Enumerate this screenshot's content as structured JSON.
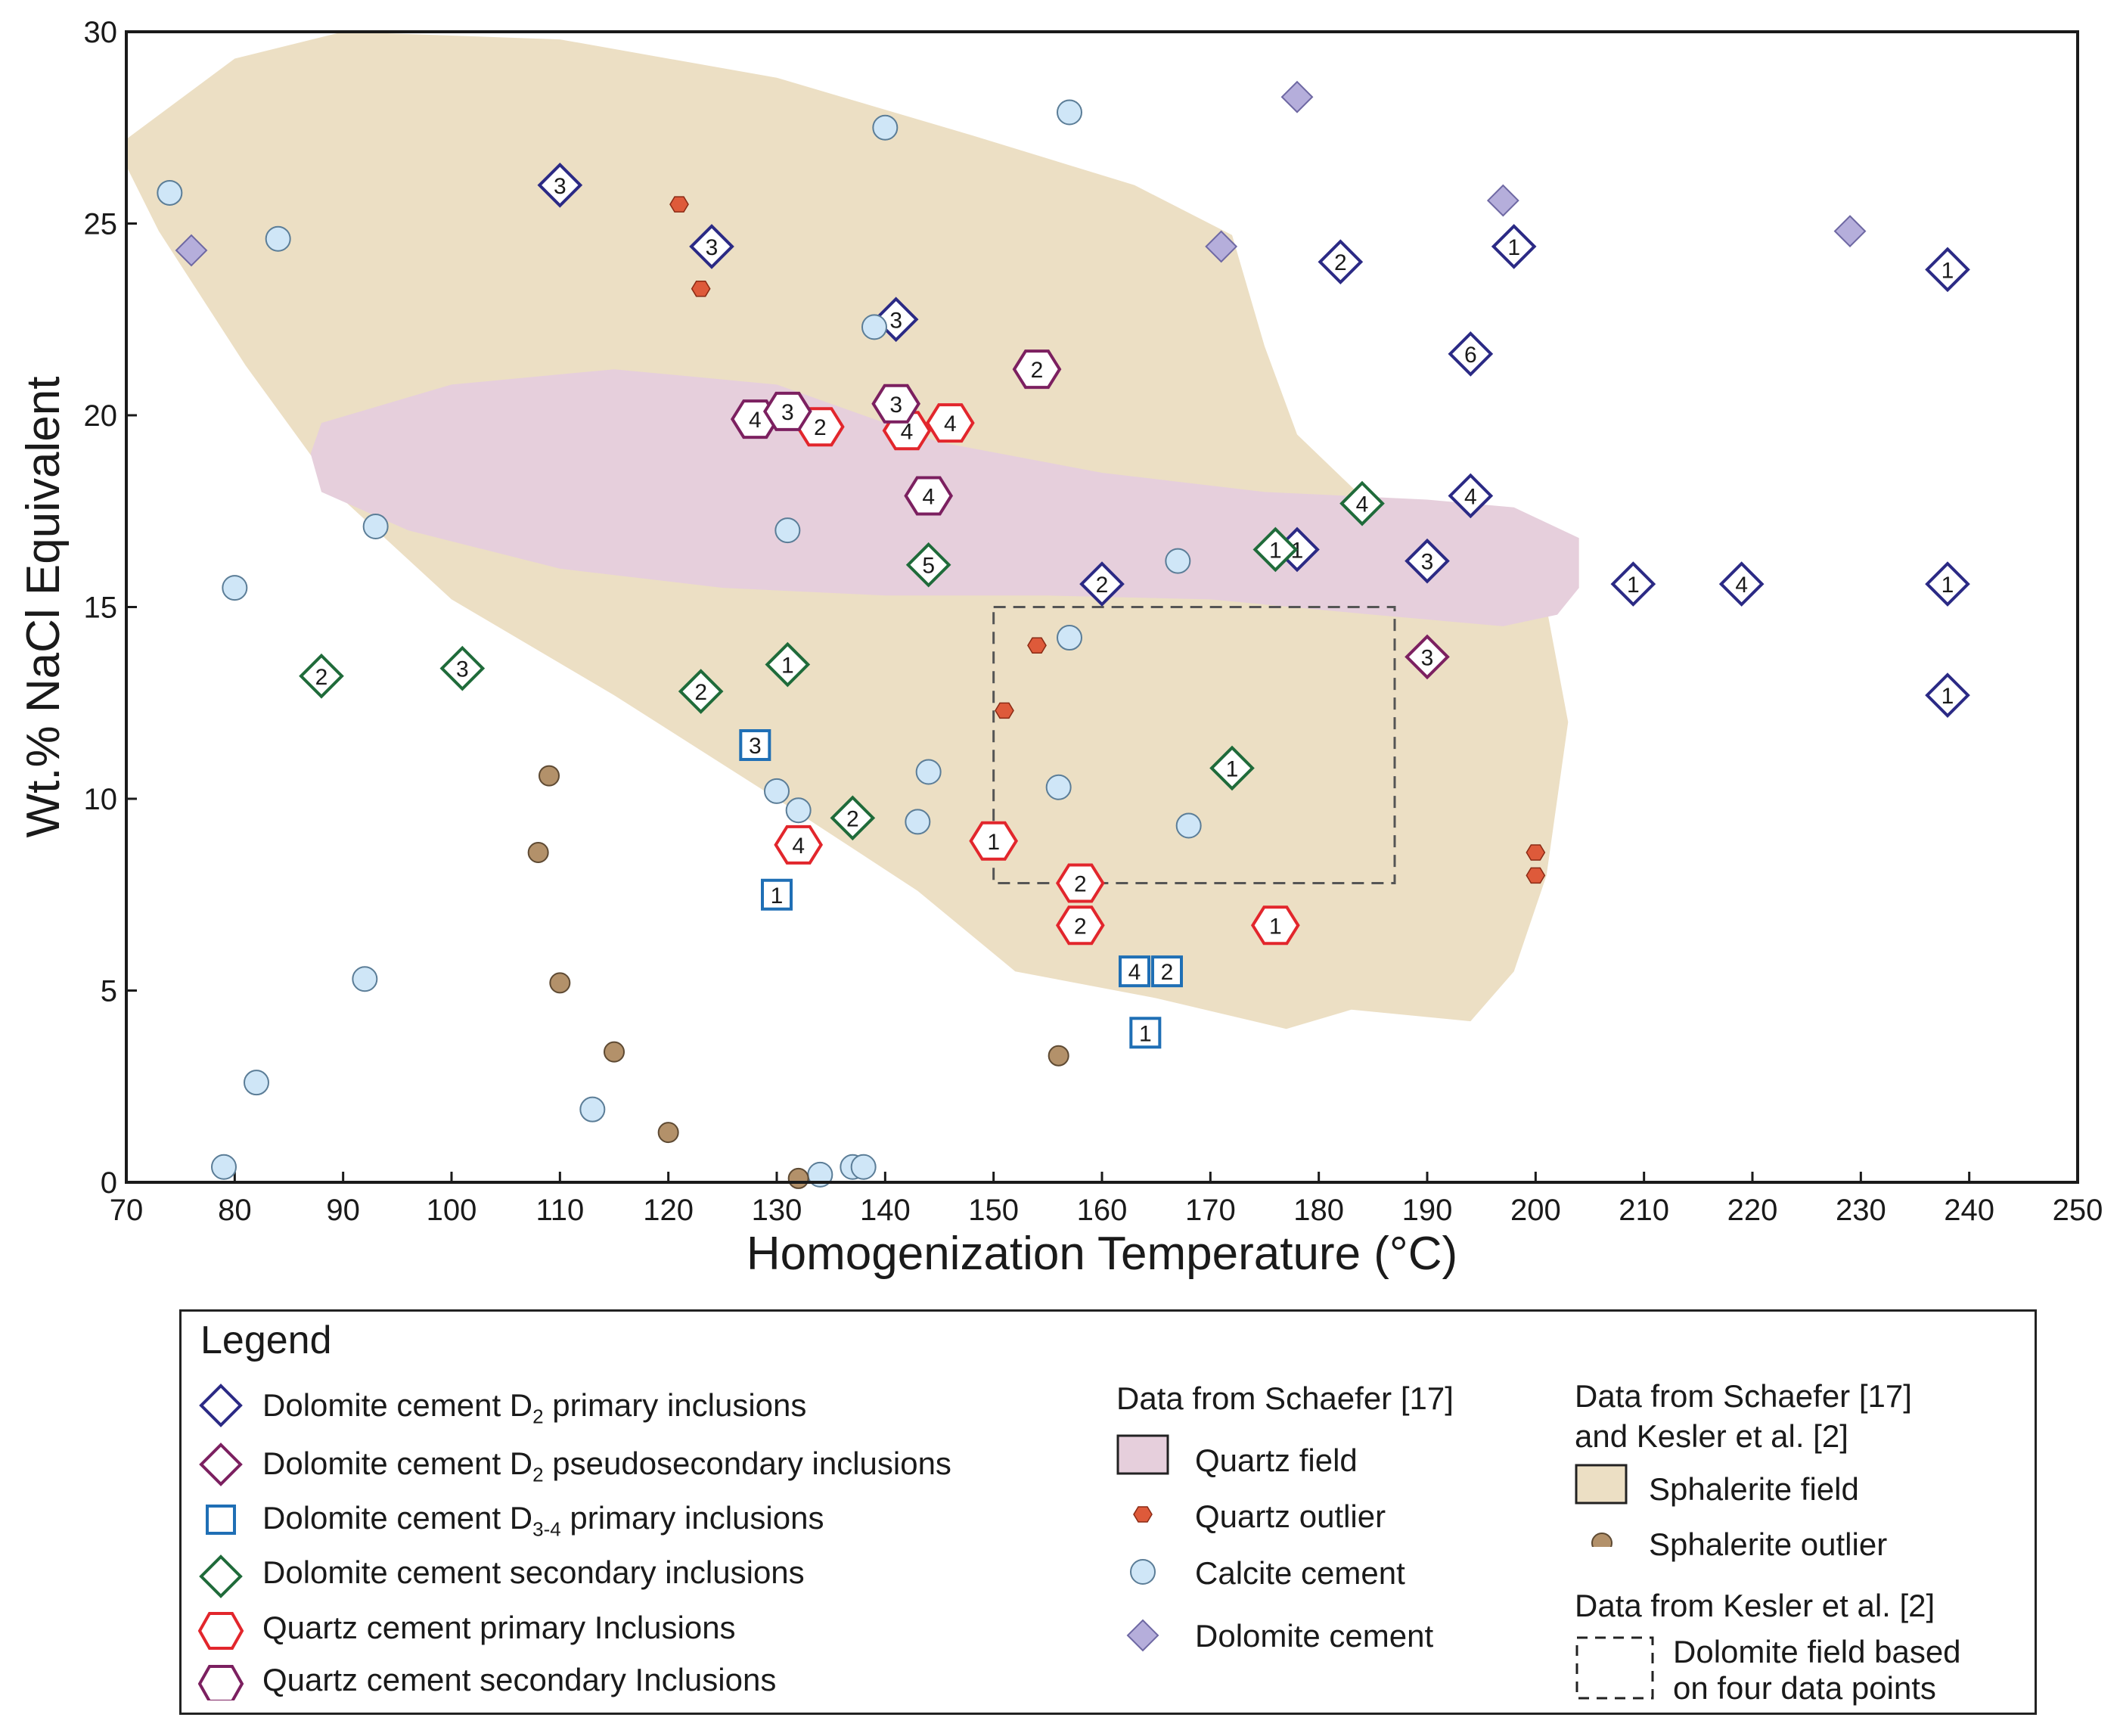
{
  "colors": {
    "d2_primary": "#2b2a85",
    "d2_pseudo": "#7c2060",
    "d34_primary": "#1f6fb5",
    "dol_secondary": "#1f6b3a",
    "qz_primary": "#e2262c",
    "qz_secondary": "#7c2060",
    "quartz_field": "#e6cfdc",
    "sphalerite_field": "#ecdfc4",
    "quartz_outlier": "#de5a3a",
    "calcite": "#cfe6f7",
    "dolomite_cement": "#b5aedb",
    "sphalerite_outlier": "#b3916a"
  },
  "chart_data": {
    "type": "scatter",
    "xlabel": "Homogenization Temperature (°C)",
    "ylabel": "Wt.% NaCl Equivalent",
    "xlim": [
      70,
      250
    ],
    "ylim": [
      0,
      30
    ],
    "xticks": [
      70,
      80,
      90,
      100,
      110,
      120,
      130,
      140,
      150,
      160,
      170,
      180,
      190,
      200,
      210,
      220,
      230,
      240,
      250
    ],
    "yticks": [
      0,
      5,
      10,
      15,
      20,
      25,
      30
    ],
    "fields": [
      {
        "name": "Sphalerite field",
        "polygon": [
          [
            70,
            27.2
          ],
          [
            80,
            29.3
          ],
          [
            90,
            30
          ],
          [
            110,
            29.8
          ],
          [
            130,
            28.8
          ],
          [
            148,
            27.3
          ],
          [
            163,
            26.0
          ],
          [
            172,
            24.7
          ],
          [
            175,
            21.8
          ],
          [
            178,
            19.5
          ],
          [
            185,
            17.6
          ],
          [
            195,
            16.6
          ],
          [
            201,
            15.0
          ],
          [
            203,
            12.0
          ],
          [
            201,
            8.0
          ],
          [
            198,
            5.5
          ],
          [
            194,
            4.2
          ],
          [
            183,
            4.5
          ],
          [
            177,
            4.0
          ],
          [
            165,
            4.8
          ],
          [
            152,
            5.5
          ],
          [
            143,
            7.6
          ],
          [
            130,
            10.0
          ],
          [
            115,
            12.7
          ],
          [
            100,
            15.2
          ],
          [
            90,
            17.8
          ],
          [
            81,
            21.3
          ],
          [
            73,
            24.8
          ],
          [
            70,
            26.5
          ]
        ]
      },
      {
        "name": "Quartz field",
        "polygon": [
          [
            88,
            19.8
          ],
          [
            100,
            20.8
          ],
          [
            115,
            21.2
          ],
          [
            130,
            20.8
          ],
          [
            145,
            19.3
          ],
          [
            160,
            18.5
          ],
          [
            175,
            18.0
          ],
          [
            190,
            17.8
          ],
          [
            198,
            17.6
          ],
          [
            204,
            16.8
          ],
          [
            204,
            15.5
          ],
          [
            202,
            14.8
          ],
          [
            197,
            14.5
          ],
          [
            185,
            14.8
          ],
          [
            170,
            15.2
          ],
          [
            155,
            15.3
          ],
          [
            140,
            15.3
          ],
          [
            125,
            15.5
          ],
          [
            110,
            16.0
          ],
          [
            96,
            17.0
          ],
          [
            88,
            18.0
          ],
          [
            87,
            19.0
          ]
        ]
      }
    ],
    "dolomite_box": {
      "x": [
        150,
        187
      ],
      "y": [
        7.8,
        15.0
      ]
    },
    "series": [
      {
        "name": "Dolomite cement D2 primary inclusions",
        "marker": "diamond",
        "points": [
          {
            "x": 110,
            "y": 26.0,
            "label": "3"
          },
          {
            "x": 124,
            "y": 24.4,
            "label": "3"
          },
          {
            "x": 141,
            "y": 22.5,
            "label": "3"
          },
          {
            "x": 182,
            "y": 24.0,
            "label": "2"
          },
          {
            "x": 198,
            "y": 24.4,
            "label": "1"
          },
          {
            "x": 238,
            "y": 23.8,
            "label": "1"
          },
          {
            "x": 194,
            "y": 21.6,
            "label": "6"
          },
          {
            "x": 194,
            "y": 17.9,
            "label": "4"
          },
          {
            "x": 178,
            "y": 16.5,
            "label": "1"
          },
          {
            "x": 190,
            "y": 16.2,
            "label": "3"
          },
          {
            "x": 160,
            "y": 15.6,
            "label": "2"
          },
          {
            "x": 209,
            "y": 15.6,
            "label": "1"
          },
          {
            "x": 219,
            "y": 15.6,
            "label": "4"
          },
          {
            "x": 238,
            "y": 15.6,
            "label": "1"
          },
          {
            "x": 238,
            "y": 12.7,
            "label": "1"
          }
        ]
      },
      {
        "name": "Dolomite cement D2 pseudosecondary inclusions",
        "marker": "diamond",
        "points": [
          {
            "x": 190,
            "y": 13.7,
            "label": "3"
          }
        ]
      },
      {
        "name": "Dolomite cement D3-4 primary inclusions",
        "marker": "square",
        "points": [
          {
            "x": 128,
            "y": 11.4,
            "label": "3"
          },
          {
            "x": 130,
            "y": 7.5,
            "label": "1"
          },
          {
            "x": 163,
            "y": 5.5,
            "label": "4"
          },
          {
            "x": 166,
            "y": 5.5,
            "label": "2"
          },
          {
            "x": 164,
            "y": 3.9,
            "label": "1"
          }
        ]
      },
      {
        "name": "Dolomite cement secondary inclusions",
        "marker": "diamond",
        "points": [
          {
            "x": 88,
            "y": 13.2,
            "label": "2"
          },
          {
            "x": 101,
            "y": 13.4,
            "label": "3"
          },
          {
            "x": 123,
            "y": 12.8,
            "label": "2"
          },
          {
            "x": 131,
            "y": 13.5,
            "label": "1"
          },
          {
            "x": 137,
            "y": 9.5,
            "label": "2"
          },
          {
            "x": 144,
            "y": 16.1,
            "label": "5"
          },
          {
            "x": 176,
            "y": 16.5,
            "label": "1"
          },
          {
            "x": 184,
            "y": 17.7,
            "label": "4"
          },
          {
            "x": 172,
            "y": 10.8,
            "label": "1"
          }
        ]
      },
      {
        "name": "Quartz cement primary Inclusions",
        "marker": "hexagon",
        "points": [
          {
            "x": 134,
            "y": 19.7,
            "label": "2"
          },
          {
            "x": 142,
            "y": 19.6,
            "label": "4"
          },
          {
            "x": 146,
            "y": 19.8,
            "label": "4"
          },
          {
            "x": 132,
            "y": 8.8,
            "label": "4"
          },
          {
            "x": 150,
            "y": 8.9,
            "label": "1"
          },
          {
            "x": 158,
            "y": 7.8,
            "label": "2"
          },
          {
            "x": 158,
            "y": 6.7,
            "label": "2"
          },
          {
            "x": 176,
            "y": 6.7,
            "label": "1"
          }
        ]
      },
      {
        "name": "Quartz cement secondary Inclusions",
        "marker": "hexagon",
        "points": [
          {
            "x": 128,
            "y": 19.9,
            "label": "4"
          },
          {
            "x": 131,
            "y": 20.1,
            "label": "3"
          },
          {
            "x": 141,
            "y": 20.3,
            "label": "3"
          },
          {
            "x": 144,
            "y": 17.9,
            "label": "4"
          },
          {
            "x": 154,
            "y": 21.2,
            "label": "2"
          }
        ]
      },
      {
        "name": "Quartz outlier",
        "marker": "small-hexagon",
        "points": [
          {
            "x": 121,
            "y": 25.5
          },
          {
            "x": 123,
            "y": 23.3
          },
          {
            "x": 154,
            "y": 14.0
          },
          {
            "x": 151,
            "y": 12.3
          },
          {
            "x": 200,
            "y": 8.6
          },
          {
            "x": 200,
            "y": 8.0
          }
        ]
      },
      {
        "name": "Calcite cement",
        "marker": "circle",
        "points": [
          {
            "x": 74,
            "y": 25.8
          },
          {
            "x": 84,
            "y": 24.6
          },
          {
            "x": 140,
            "y": 27.5
          },
          {
            "x": 157,
            "y": 27.9
          },
          {
            "x": 139,
            "y": 22.3
          },
          {
            "x": 93,
            "y": 17.1
          },
          {
            "x": 80,
            "y": 15.5
          },
          {
            "x": 131,
            "y": 17.0
          },
          {
            "x": 167,
            "y": 16.2
          },
          {
            "x": 157,
            "y": 14.2
          },
          {
            "x": 130,
            "y": 10.2
          },
          {
            "x": 132,
            "y": 9.7
          },
          {
            "x": 144,
            "y": 10.7
          },
          {
            "x": 143,
            "y": 9.4
          },
          {
            "x": 156,
            "y": 10.3
          },
          {
            "x": 168,
            "y": 9.3
          },
          {
            "x": 92,
            "y": 5.3
          },
          {
            "x": 82,
            "y": 2.6
          },
          {
            "x": 113,
            "y": 1.9
          },
          {
            "x": 79,
            "y": 0.4
          },
          {
            "x": 134,
            "y": 0.2
          },
          {
            "x": 137,
            "y": 0.4
          },
          {
            "x": 138,
            "y": 0.4
          }
        ]
      },
      {
        "name": "Dolomite cement",
        "marker": "filled-diamond",
        "points": [
          {
            "x": 76,
            "y": 24.3
          },
          {
            "x": 178,
            "y": 28.3
          },
          {
            "x": 171,
            "y": 24.4
          },
          {
            "x": 197,
            "y": 25.6
          },
          {
            "x": 229,
            "y": 24.8
          }
        ]
      },
      {
        "name": "Sphalerite outlier",
        "marker": "circle",
        "points": [
          {
            "x": 109,
            "y": 10.6
          },
          {
            "x": 108,
            "y": 8.6
          },
          {
            "x": 110,
            "y": 5.2
          },
          {
            "x": 115,
            "y": 3.4
          },
          {
            "x": 120,
            "y": 1.3
          },
          {
            "x": 132,
            "y": 0.1
          },
          {
            "x": 156,
            "y": 3.3
          }
        ]
      }
    ]
  },
  "legend": {
    "title": "Legend",
    "left_items": [
      {
        "main": "Dolomite cement D",
        "sub": "2",
        "rest": " primary inclusions"
      },
      {
        "main": "Dolomite cement D",
        "sub": "2",
        "rest": " pseudosecondary inclusions"
      },
      {
        "main": "Dolomite cement D",
        "sub": "3-4",
        "rest": " primary inclusions"
      },
      {
        "main": "Dolomite cement secondary inclusions",
        "sub": "",
        "rest": ""
      },
      {
        "main": "Quartz cement primary Inclusions",
        "sub": "",
        "rest": ""
      },
      {
        "main": "Quartz cement secondary Inclusions",
        "sub": "",
        "rest": ""
      }
    ],
    "schaefer_heading": "Data from Schaefer [17]",
    "middle_items": [
      "Quartz field",
      "Quartz outlier",
      "Calcite cement",
      "Dolomite cement"
    ],
    "combined_heading_1": "Data from Schaefer [17]",
    "combined_heading_2": "and Kesler et al. [2]",
    "right_items": [
      "Sphalerite field",
      "Sphalerite outlier"
    ],
    "kesler_heading": "Data from Kesler et al. [2]",
    "box_label_1": "Dolomite field based",
    "box_label_2": "on four data points"
  }
}
